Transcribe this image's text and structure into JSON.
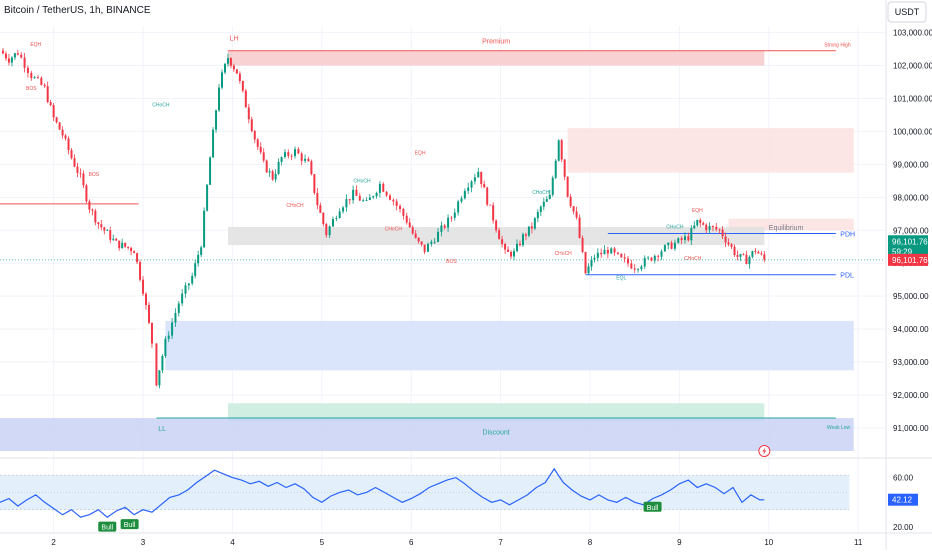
{
  "header": {
    "title": "Bitcoin / TetherUS, 1h, BINANCE",
    "currency": "USDT"
  },
  "chart_data": {
    "type": "candlestick",
    "title": "Bitcoin / TetherUS, 1h, BINANCE",
    "xlabel": "",
    "ylabel": "",
    "x_ticks": [
      "2",
      "3",
      "4",
      "5",
      "6",
      "7",
      "8",
      "9",
      "10",
      "11"
    ],
    "x_range": [
      1.4,
      11.3
    ],
    "y_ticks": [
      "103,000.00",
      "102,000.00",
      "101,000.00",
      "100,000.00",
      "99,000.00",
      "98,000.00",
      "97,000.00",
      "96,000.00",
      "95,000.00",
      "94,000.00",
      "93,000.00",
      "92,000.00",
      "91,000.00"
    ],
    "y_range": [
      90300,
      103200
    ],
    "last_price": "96,101.76",
    "countdown": "59:29",
    "bid_price": "96,101.76",
    "price_path": [
      [
        1.4,
        102450
      ],
      [
        1.5,
        102200
      ],
      [
        1.6,
        102400
      ],
      [
        1.75,
        101700
      ],
      [
        1.9,
        101300
      ],
      [
        2.0,
        100400
      ],
      [
        2.1,
        99900
      ],
      [
        2.2,
        99200
      ],
      [
        2.3,
        98600
      ],
      [
        2.4,
        97700
      ],
      [
        2.5,
        97200
      ],
      [
        2.7,
        96600
      ],
      [
        2.9,
        96400
      ],
      [
        3.0,
        95200
      ],
      [
        3.1,
        93600
      ],
      [
        3.15,
        92400
      ],
      [
        3.25,
        93600
      ],
      [
        3.4,
        94800
      ],
      [
        3.55,
        95600
      ],
      [
        3.65,
        96600
      ],
      [
        3.75,
        99200
      ],
      [
        3.85,
        101400
      ],
      [
        3.95,
        102250
      ],
      [
        4.05,
        101800
      ],
      [
        4.15,
        100800
      ],
      [
        4.25,
        99800
      ],
      [
        4.35,
        99000
      ],
      [
        4.45,
        98600
      ],
      [
        4.55,
        99200
      ],
      [
        4.7,
        99400
      ],
      [
        4.85,
        99000
      ],
      [
        4.95,
        97800
      ],
      [
        5.05,
        96900
      ],
      [
        5.2,
        97700
      ],
      [
        5.35,
        98100
      ],
      [
        5.5,
        97800
      ],
      [
        5.65,
        98400
      ],
      [
        5.8,
        97900
      ],
      [
        5.95,
        97300
      ],
      [
        6.05,
        96700
      ],
      [
        6.15,
        96400
      ],
      [
        6.3,
        96900
      ],
      [
        6.45,
        97400
      ],
      [
        6.6,
        98300
      ],
      [
        6.75,
        98800
      ],
      [
        6.85,
        97900
      ],
      [
        6.95,
        97100
      ],
      [
        7.05,
        96300
      ],
      [
        7.15,
        96300
      ],
      [
        7.25,
        96800
      ],
      [
        7.35,
        97100
      ],
      [
        7.45,
        97700
      ],
      [
        7.55,
        98000
      ],
      [
        7.65,
        99800
      ],
      [
        7.75,
        98100
      ],
      [
        7.85,
        97300
      ],
      [
        7.95,
        95700
      ],
      [
        8.05,
        96200
      ],
      [
        8.2,
        96400
      ],
      [
        8.35,
        96100
      ],
      [
        8.5,
        95900
      ],
      [
        8.65,
        96100
      ],
      [
        8.8,
        96400
      ],
      [
        8.95,
        96600
      ],
      [
        9.1,
        96800
      ],
      [
        9.2,
        97250
      ],
      [
        9.3,
        97100
      ],
      [
        9.45,
        97000
      ],
      [
        9.55,
        96600
      ],
      [
        9.65,
        96200
      ],
      [
        9.75,
        96100
      ],
      [
        9.85,
        96400
      ],
      [
        9.95,
        96100
      ]
    ],
    "zones": [
      {
        "label": "Premium",
        "y_low": 102000,
        "y_high": 102450,
        "x_start": 3.95,
        "x_end": 9.95,
        "color": "#f7caca"
      },
      {
        "label": "",
        "y_low": 98750,
        "y_high": 100100,
        "x_start": 7.75,
        "x_end": 10.95,
        "color": "#fbe0e0"
      },
      {
        "label": "",
        "y_low": 97000,
        "y_high": 97350,
        "x_start": 9.55,
        "x_end": 10.95,
        "color": "#fbe0e0"
      },
      {
        "label": "Equilibrium",
        "y_low": 96550,
        "y_high": 97100,
        "x_start": 3.95,
        "x_end": 9.95,
        "color": "#e0e0e0"
      },
      {
        "label": "",
        "y_low": 92750,
        "y_high": 94250,
        "x_start": 3.25,
        "x_end": 10.95,
        "color": "#d3e1fb"
      },
      {
        "label": "Discount",
        "y_low": 91200,
        "y_high": 91750,
        "x_start": 3.95,
        "x_end": 9.95,
        "color": "#c9ebdd"
      },
      {
        "label": "",
        "y_low": 90300,
        "y_high": 91300,
        "x_start": 1.4,
        "x_end": 10.95,
        "color": "#c9d2f4"
      }
    ],
    "levels": [
      {
        "label": "LH",
        "y": 102450,
        "color": "#ef5350"
      },
      {
        "label": "Strong High",
        "y": 102450,
        "color": "#ef5350"
      },
      {
        "label": "PDH",
        "y": 96900,
        "color": "#2962ff"
      },
      {
        "label": "PDL",
        "y": 95650,
        "color": "#2962ff"
      },
      {
        "label": "LL",
        "y": 91300,
        "color": "#26a69a"
      },
      {
        "label": "Weak Low",
        "y": 91300,
        "color": "#26a69a"
      }
    ],
    "structure_labels": [
      {
        "text": "EQH",
        "x": 1.8,
        "y": 102600,
        "color": "#ef5350"
      },
      {
        "text": "BOS",
        "x": 1.75,
        "y": 101250,
        "color": "#ef5350"
      },
      {
        "text": "CHoCH",
        "x": 3.2,
        "y": 100750,
        "color": "#26a69a"
      },
      {
        "text": "BOS",
        "x": 2.45,
        "y": 98650,
        "color": "#ef5350"
      },
      {
        "text": "CHoCH",
        "x": 4.7,
        "y": 97700,
        "color": "#ef5350"
      },
      {
        "text": "CHoCH",
        "x": 5.45,
        "y": 98450,
        "color": "#26a69a"
      },
      {
        "text": "EQH",
        "x": 6.1,
        "y": 99300,
        "color": "#ef5350"
      },
      {
        "text": "CHoCH",
        "x": 5.8,
        "y": 97000,
        "color": "#ef5350"
      },
      {
        "text": "BOS",
        "x": 6.45,
        "y": 96000,
        "color": "#ef5350"
      },
      {
        "text": "CHoCH",
        "x": 7.45,
        "y": 98100,
        "color": "#26a69a"
      },
      {
        "text": "CHoCH",
        "x": 7.7,
        "y": 96250,
        "color": "#ef5350"
      },
      {
        "text": "EQL",
        "x": 8.35,
        "y": 95500,
        "color": "#26a69a"
      },
      {
        "text": "CHoCH",
        "x": 8.95,
        "y": 97050,
        "color": "#26a69a"
      },
      {
        "text": "EQH",
        "x": 9.2,
        "y": 97550,
        "color": "#ef5350"
      },
      {
        "text": "CHoCH",
        "x": 9.15,
        "y": 96100,
        "color": "#ef5350"
      }
    ],
    "rsi": {
      "y_ticks": [
        "60.00",
        "20.00"
      ],
      "y_range": [
        16,
        71
      ],
      "overbought": 62,
      "oversold": 34,
      "last_value": "42.12",
      "signals": [
        {
          "text": "Bull",
          "x": 2.6,
          "y": 22
        },
        {
          "text": "Bull",
          "x": 2.85,
          "y": 24
        },
        {
          "text": "Bull",
          "x": 8.7,
          "y": 38
        }
      ],
      "values": [
        [
          1.4,
          40
        ],
        [
          1.5,
          43
        ],
        [
          1.6,
          37
        ],
        [
          1.7,
          42
        ],
        [
          1.8,
          46
        ],
        [
          1.9,
          40
        ],
        [
          2.0,
          35
        ],
        [
          2.1,
          30
        ],
        [
          2.2,
          34
        ],
        [
          2.3,
          28
        ],
        [
          2.4,
          30
        ],
        [
          2.5,
          34
        ],
        [
          2.6,
          28
        ],
        [
          2.7,
          33
        ],
        [
          2.8,
          36
        ],
        [
          2.9,
          30
        ],
        [
          3.0,
          34
        ],
        [
          3.1,
          32
        ],
        [
          3.2,
          38
        ],
        [
          3.3,
          44
        ],
        [
          3.4,
          46
        ],
        [
          3.5,
          50
        ],
        [
          3.6,
          56
        ],
        [
          3.7,
          61
        ],
        [
          3.8,
          66
        ],
        [
          3.9,
          63
        ],
        [
          4.0,
          60
        ],
        [
          4.1,
          58
        ],
        [
          4.2,
          55
        ],
        [
          4.3,
          57
        ],
        [
          4.4,
          53
        ],
        [
          4.5,
          56
        ],
        [
          4.6,
          52
        ],
        [
          4.7,
          55
        ],
        [
          4.8,
          51
        ],
        [
          4.9,
          44
        ],
        [
          5.0,
          40
        ],
        [
          5.1,
          45
        ],
        [
          5.2,
          48
        ],
        [
          5.3,
          50
        ],
        [
          5.4,
          46
        ],
        [
          5.5,
          48
        ],
        [
          5.6,
          52
        ],
        [
          5.7,
          48
        ],
        [
          5.8,
          44
        ],
        [
          5.9,
          40
        ],
        [
          6.0,
          43
        ],
        [
          6.1,
          47
        ],
        [
          6.2,
          52
        ],
        [
          6.3,
          55
        ],
        [
          6.4,
          58
        ],
        [
          6.5,
          60
        ],
        [
          6.6,
          55
        ],
        [
          6.7,
          49
        ],
        [
          6.8,
          44
        ],
        [
          6.9,
          40
        ],
        [
          7.0,
          42
        ],
        [
          7.1,
          38
        ],
        [
          7.2,
          42
        ],
        [
          7.3,
          46
        ],
        [
          7.4,
          52
        ],
        [
          7.5,
          56
        ],
        [
          7.6,
          67
        ],
        [
          7.7,
          56
        ],
        [
          7.8,
          50
        ],
        [
          7.9,
          45
        ],
        [
          8.0,
          42
        ],
        [
          8.1,
          46
        ],
        [
          8.2,
          42
        ],
        [
          8.3,
          40
        ],
        [
          8.4,
          44
        ],
        [
          8.5,
          40
        ],
        [
          8.6,
          38
        ],
        [
          8.7,
          43
        ],
        [
          8.8,
          46
        ],
        [
          8.9,
          50
        ],
        [
          9.0,
          55
        ],
        [
          9.1,
          58
        ],
        [
          9.2,
          52
        ],
        [
          9.3,
          55
        ],
        [
          9.4,
          52
        ],
        [
          9.5,
          47
        ],
        [
          9.6,
          52
        ],
        [
          9.7,
          40
        ],
        [
          9.8,
          46
        ],
        [
          9.9,
          42
        ],
        [
          9.95,
          42.12
        ]
      ]
    }
  }
}
